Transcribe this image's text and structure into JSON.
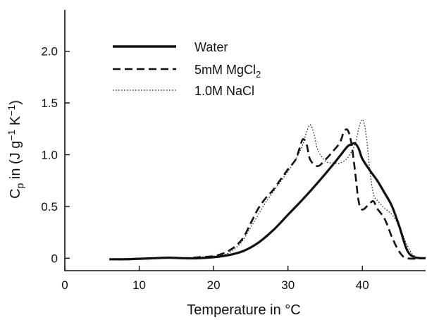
{
  "chart_data": {
    "type": "line",
    "xlabel": "Temperature in °C",
    "ylabel": {
      "base": "C",
      "sub": "p",
      "rest1": " in (J g",
      "sup1": "−1",
      "rest2": " K",
      "sup2": "−1",
      "rest3": ")"
    },
    "xlim": [
      0,
      48.5
    ],
    "ylim": [
      -0.12,
      2.4
    ],
    "xticks": [
      0,
      10,
      20,
      30,
      40
    ],
    "xtick_labels": [
      "0",
      "10",
      "20",
      "30",
      "40"
    ],
    "yticks": [
      0,
      0.5,
      1.0,
      1.5,
      2.0
    ],
    "ytick_labels": [
      "0",
      "0.5",
      "1.0",
      "1.5",
      "2.0"
    ],
    "grid": false,
    "legend_position": "top-left",
    "series": [
      {
        "name": "Water",
        "legend_base": "Water",
        "style": "solid",
        "x": [
          6,
          8,
          10,
          12,
          14,
          16,
          18,
          20,
          22,
          24,
          26,
          28,
          30,
          32,
          34,
          36,
          37,
          38,
          38.5,
          39,
          39.5,
          40,
          41,
          42,
          43,
          44,
          45,
          46,
          47,
          48.5
        ],
        "y": [
          -0.01,
          -0.01,
          -0.005,
          0.0,
          0.005,
          0.0,
          0.0,
          0.01,
          0.03,
          0.07,
          0.15,
          0.27,
          0.42,
          0.57,
          0.73,
          0.9,
          0.99,
          1.08,
          1.1,
          1.11,
          1.06,
          0.96,
          0.85,
          0.75,
          0.63,
          0.5,
          0.3,
          0.08,
          0.01,
          0.0
        ]
      },
      {
        "name": "5mM MgCl2",
        "legend_base": "5mM MgCl",
        "legend_sub": "2",
        "style": "dashed",
        "x": [
          6,
          8,
          10,
          12,
          14,
          16,
          18,
          20,
          21,
          22,
          23,
          24,
          25,
          26,
          27,
          28,
          29,
          30,
          31,
          31.5,
          32,
          32.5,
          33,
          34,
          35,
          36,
          37,
          37.5,
          38,
          38.5,
          39,
          39.5,
          40,
          41,
          41.5,
          42,
          43,
          44,
          45,
          46,
          48.5
        ],
        "y": [
          -0.01,
          -0.01,
          -0.005,
          0.0,
          0.005,
          0.0,
          0.01,
          0.02,
          0.04,
          0.07,
          0.12,
          0.2,
          0.34,
          0.48,
          0.58,
          0.66,
          0.76,
          0.86,
          0.95,
          1.05,
          1.15,
          1.1,
          0.95,
          0.89,
          0.95,
          1.03,
          1.12,
          1.22,
          1.24,
          1.12,
          0.85,
          0.55,
          0.47,
          0.53,
          0.55,
          0.48,
          0.38,
          0.2,
          0.06,
          0.0,
          0.0
        ]
      },
      {
        "name": "1.0M NaCl",
        "legend_base": "1.0M NaCl",
        "style": "dotted",
        "x": [
          6,
          8,
          10,
          12,
          14,
          16,
          18,
          20,
          21,
          22,
          23,
          24,
          25,
          26,
          27,
          28,
          29,
          30,
          31,
          32,
          32.5,
          33,
          33.5,
          34,
          35,
          36,
          37,
          38,
          39,
          39.5,
          40,
          40.5,
          41,
          41.5,
          42,
          43,
          44,
          45,
          46,
          47,
          48.5
        ],
        "y": [
          -0.01,
          -0.01,
          -0.005,
          0.0,
          0.005,
          0.0,
          0.01,
          0.02,
          0.03,
          0.05,
          0.1,
          0.18,
          0.3,
          0.42,
          0.54,
          0.64,
          0.74,
          0.84,
          0.95,
          1.1,
          1.22,
          1.29,
          1.2,
          1.05,
          0.94,
          0.92,
          0.92,
          0.97,
          1.1,
          1.25,
          1.34,
          1.2,
          0.85,
          0.62,
          0.56,
          0.48,
          0.42,
          0.3,
          0.13,
          0.02,
          0.0
        ]
      }
    ]
  }
}
